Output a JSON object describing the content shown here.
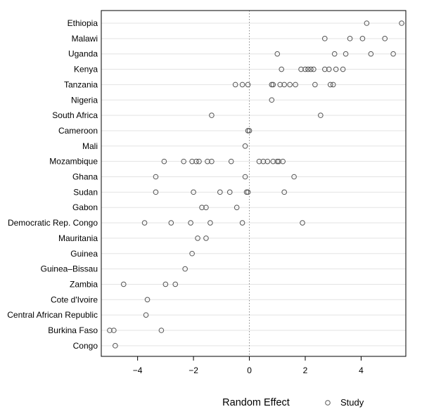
{
  "chart_data": {
    "type": "scatter",
    "xlabel": "Random Effect",
    "xlim": [
      -5.3,
      5.6
    ],
    "xticks": [
      -4,
      -2,
      0,
      2,
      4
    ],
    "xtick_labels": [
      "−4",
      "−2",
      "0",
      "2",
      "4"
    ],
    "reference_line": 0,
    "grid": "horizontal",
    "legend": {
      "position": "bottom-right",
      "entries": [
        "Study"
      ]
    },
    "categories": [
      "Ethiopia",
      "Malawi",
      "Uganda",
      "Kenya",
      "Tanzania",
      "Nigeria",
      "South Africa",
      "Cameroon",
      "Mali",
      "Mozambique",
      "Ghana",
      "Sudan",
      "Gabon",
      "Democratic Rep. Congo",
      "Mauritania",
      "Guinea",
      "Guinea–Bissau",
      "Zambia",
      "Cote d'Ivoire",
      "Central African Republic",
      "Burkina Faso",
      "Congo"
    ],
    "series": [
      {
        "name": "Study",
        "values": [
          [
            4.2,
            5.45
          ],
          [
            2.7,
            3.6,
            4.05,
            4.85
          ],
          [
            1.0,
            3.05,
            3.45,
            4.35,
            5.15
          ],
          [
            1.15,
            1.85,
            2.0,
            2.1,
            2.2,
            2.3,
            2.7,
            2.85,
            3.1,
            3.35
          ],
          [
            -0.5,
            -0.25,
            -0.05,
            0.8,
            0.85,
            1.1,
            1.25,
            1.45,
            1.65,
            2.35,
            2.9,
            3.0
          ],
          [
            0.8
          ],
          [
            -1.35,
            2.55
          ],
          [
            -0.05,
            0.0
          ],
          [
            -0.15
          ],
          [
            -3.05,
            -2.35,
            -2.05,
            -1.9,
            -1.8,
            -1.5,
            -1.35,
            -0.65,
            0.35,
            0.5,
            0.65,
            0.85,
            1.0,
            1.05,
            1.2
          ],
          [
            -3.35,
            -0.15,
            1.6
          ],
          [
            -3.35,
            -2.0,
            -1.05,
            -0.7,
            -0.1,
            -0.05,
            1.25
          ],
          [
            -1.7,
            -1.55,
            -0.45
          ],
          [
            -3.75,
            -2.8,
            -2.1,
            -1.4,
            -0.25,
            1.9
          ],
          [
            -1.85,
            -1.55
          ],
          [
            -2.05
          ],
          [
            -2.3
          ],
          [
            -4.5,
            -3.0,
            -2.65
          ],
          [
            -3.65
          ],
          [
            -3.7
          ],
          [
            -5.0,
            -4.85,
            -3.15
          ],
          [
            -4.8
          ]
        ]
      }
    ]
  }
}
